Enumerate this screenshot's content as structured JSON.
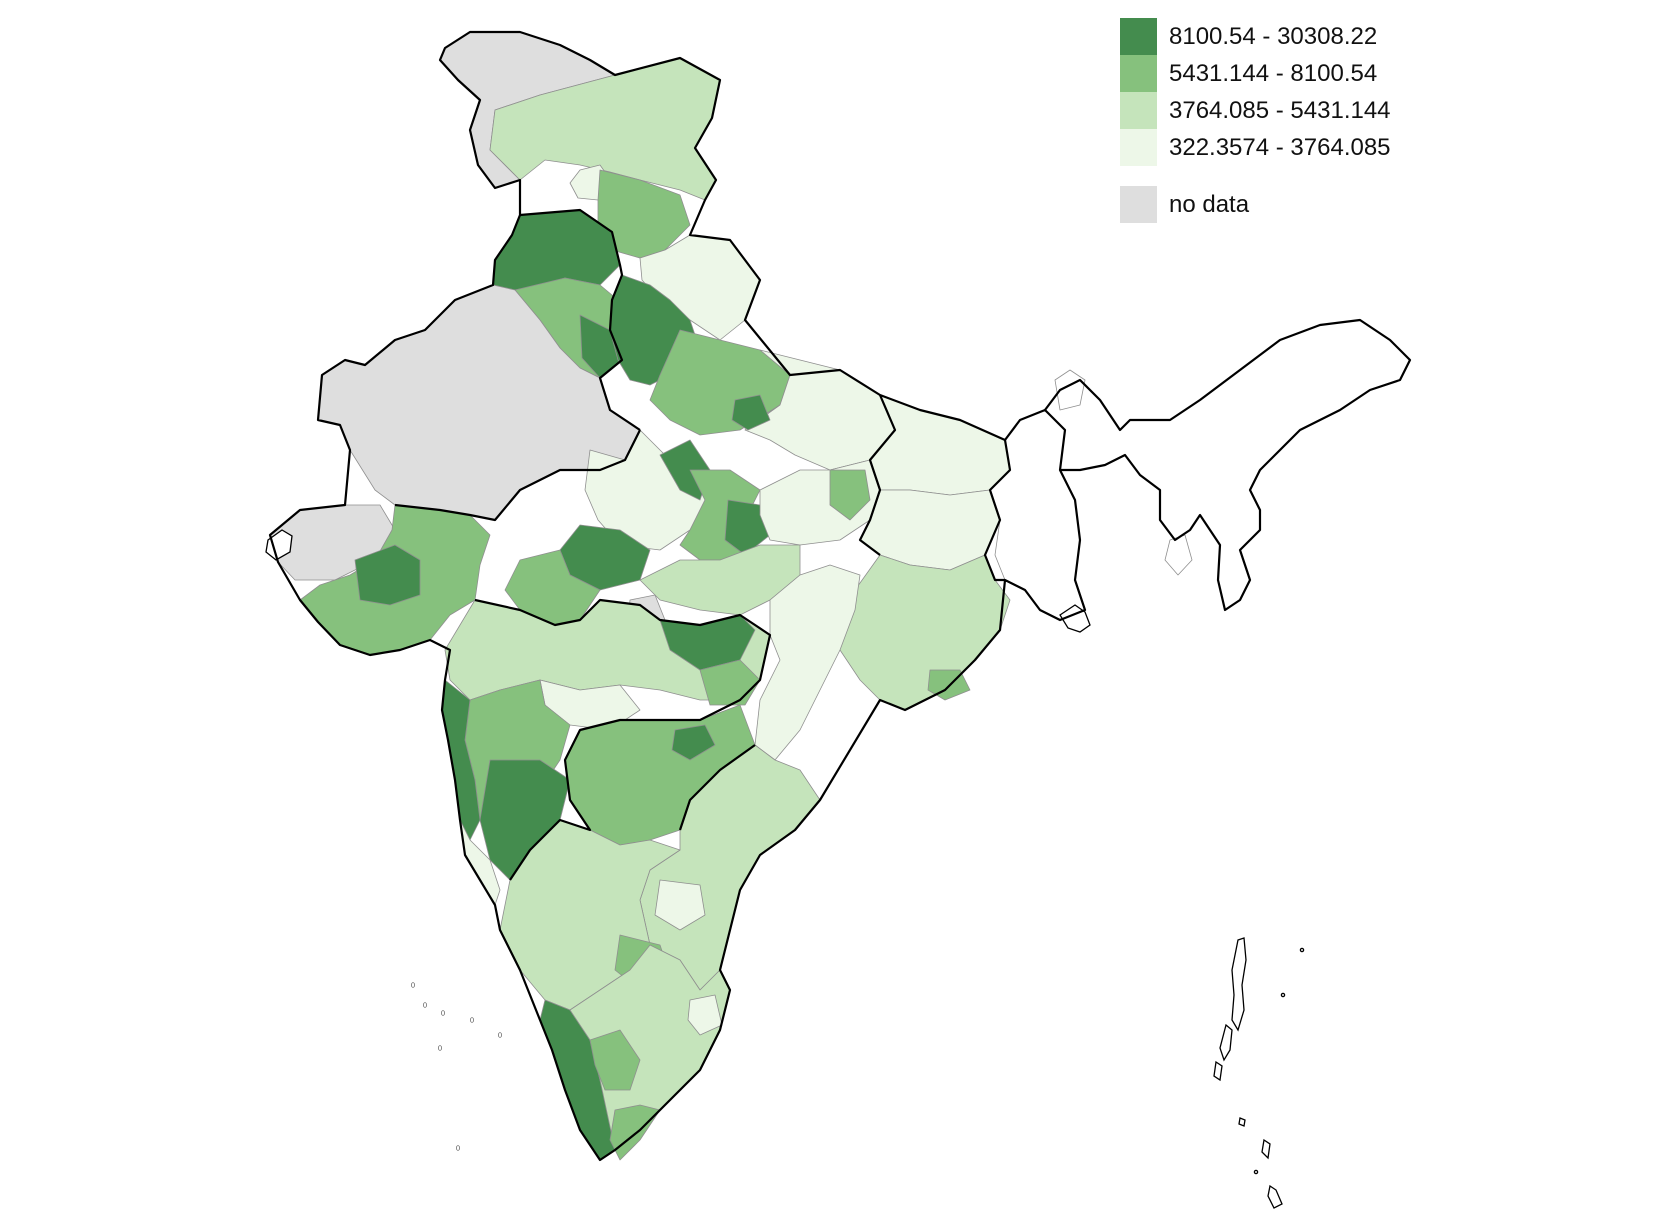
{
  "legend": {
    "classes": [
      {
        "label": "8100.54 - 30308.22",
        "color": "#448c4e"
      },
      {
        "label": "5431.144 - 8100.54",
        "color": "#86c17d"
      },
      {
        "label": "3764.085 - 5431.144",
        "color": "#c5e4bb"
      },
      {
        "label": "322.3574 - 3764.085",
        "color": "#edf7e8"
      }
    ],
    "no_data": {
      "label": "no data",
      "color": "#dedede"
    }
  },
  "palette": {
    "border": "#000000",
    "district_lines": "#8f8f8f",
    "unclassified_fill": "#ffffff"
  }
}
